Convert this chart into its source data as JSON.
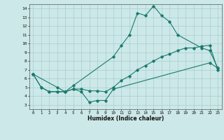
{
  "xlabel": "Humidex (Indice chaleur)",
  "xlim": [
    -0.5,
    23.5
  ],
  "ylim": [
    2.5,
    14.5
  ],
  "yticks": [
    3,
    4,
    5,
    6,
    7,
    8,
    9,
    10,
    11,
    12,
    13,
    14
  ],
  "xticks": [
    0,
    1,
    2,
    3,
    4,
    5,
    6,
    7,
    8,
    9,
    10,
    11,
    12,
    13,
    14,
    15,
    16,
    17,
    18,
    19,
    20,
    21,
    22,
    23
  ],
  "bg_color": "#cce8e8",
  "line_color": "#1a7a6e",
  "grid_color": "#aacece",
  "lines": [
    {
      "x": [
        0,
        1,
        2,
        3,
        4,
        5,
        10,
        11,
        12,
        13,
        14,
        15,
        16,
        17,
        18,
        21,
        22,
        23
      ],
      "y": [
        6.5,
        5.0,
        4.5,
        4.5,
        4.5,
        5.2,
        8.5,
        9.8,
        11.0,
        13.5,
        13.2,
        14.3,
        13.2,
        12.5,
        11.0,
        9.5,
        9.2,
        7.2
      ]
    },
    {
      "x": [
        0,
        1,
        2,
        3,
        4,
        5,
        6,
        7,
        8,
        9,
        10,
        11,
        12,
        13,
        14,
        15,
        16,
        17,
        18,
        19,
        20,
        21,
        22,
        23
      ],
      "y": [
        6.5,
        5.0,
        4.5,
        4.5,
        4.5,
        4.8,
        4.8,
        4.6,
        4.6,
        4.5,
        5.0,
        5.8,
        6.3,
        7.0,
        7.5,
        8.0,
        8.5,
        8.8,
        9.2,
        9.5,
        9.5,
        9.7,
        9.8,
        7.0
      ]
    },
    {
      "x": [
        0,
        3,
        4,
        5,
        6,
        7,
        8,
        9,
        10,
        22,
        23
      ],
      "y": [
        6.5,
        5.0,
        4.5,
        4.8,
        4.5,
        3.3,
        3.5,
        3.5,
        4.8,
        7.8,
        7.2
      ]
    }
  ]
}
